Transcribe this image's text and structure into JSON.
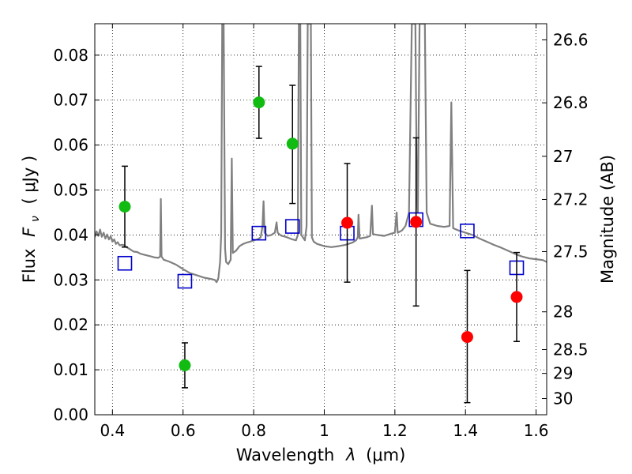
{
  "chart_data": {
    "type": "scatter",
    "xlabel_prefix": "Wavelength",
    "xlabel_symbol": "λ",
    "xlabel_unit": "(μm)",
    "ylabel_prefix": "Flux",
    "ylabel_symbol": "F",
    "ylabel_sub": "ν",
    "ylabel_unit": "( μJy )",
    "y2label": "Magnitude (AB)",
    "xlim": [
      0.35,
      1.63
    ],
    "ylim": [
      0.0,
      0.087
    ],
    "grid": true,
    "x_ticks": [
      0.4,
      0.6,
      0.8,
      1.0,
      1.2,
      1.4,
      1.6
    ],
    "x_tick_labels": [
      "0.4",
      "0.6",
      "0.8",
      "1",
      "1.2",
      "1.4",
      "1.6"
    ],
    "y_ticks": [
      0.0,
      0.01,
      0.02,
      0.03,
      0.04,
      0.05,
      0.06,
      0.07,
      0.08
    ],
    "y_tick_labels": [
      "0.00",
      "0.01",
      "0.02",
      "0.03",
      "0.04",
      "0.05",
      "0.06",
      "0.07",
      "0.08"
    ],
    "y2_ticks": [
      {
        "label": "26.6",
        "flux": 0.0834
      },
      {
        "label": "26.8",
        "flux": 0.0694
      },
      {
        "label": "27",
        "flux": 0.0575
      },
      {
        "label": "27.2",
        "flux": 0.0479
      },
      {
        "label": "27.5",
        "flux": 0.0363
      },
      {
        "label": "28",
        "flux": 0.0229
      },
      {
        "label": "28.5",
        "flux": 0.0145
      },
      {
        "label": "29",
        "flux": 0.0092
      },
      {
        "label": "30",
        "flux": 0.0036
      }
    ],
    "colors": {
      "spectrum": "#808080",
      "green": "#11bb11",
      "red": "#ff0000",
      "model": "#0000cc",
      "errorbar": "#000000"
    },
    "series": [
      {
        "kind": "line",
        "points": [
          [
            0.35,
            0.0395
          ],
          [
            0.355,
            0.0408
          ],
          [
            0.36,
            0.0398
          ],
          [
            0.365,
            0.0412
          ],
          [
            0.37,
            0.0396
          ],
          [
            0.375,
            0.0405
          ],
          [
            0.38,
            0.0392
          ],
          [
            0.385,
            0.0401
          ],
          [
            0.39,
            0.039
          ],
          [
            0.395,
            0.0397
          ],
          [
            0.4,
            0.0385
          ],
          [
            0.405,
            0.039
          ],
          [
            0.41,
            0.038
          ],
          [
            0.415,
            0.0384
          ],
          [
            0.42,
            0.0377
          ],
          [
            0.43,
            0.0378
          ],
          [
            0.44,
            0.0373
          ],
          [
            0.45,
            0.0368
          ],
          [
            0.46,
            0.0363
          ],
          [
            0.47,
            0.0362
          ],
          [
            0.48,
            0.0358
          ],
          [
            0.49,
            0.0356
          ],
          [
            0.5,
            0.0354
          ],
          [
            0.51,
            0.0352
          ],
          [
            0.52,
            0.035
          ],
          [
            0.53,
            0.0349
          ],
          [
            0.535,
            0.0352
          ],
          [
            0.537,
            0.048
          ],
          [
            0.539,
            0.0352
          ],
          [
            0.545,
            0.0345
          ],
          [
            0.56,
            0.0341
          ],
          [
            0.58,
            0.0334
          ],
          [
            0.6,
            0.0324
          ],
          [
            0.62,
            0.0315
          ],
          [
            0.64,
            0.031
          ],
          [
            0.66,
            0.0305
          ],
          [
            0.68,
            0.0302
          ],
          [
            0.69,
            0.03
          ],
          [
            0.695,
            0.0295
          ],
          [
            0.7,
            0.0304
          ],
          [
            0.705,
            0.034
          ],
          [
            0.708,
            0.04
          ],
          [
            0.711,
            0.087
          ],
          [
            0.715,
            0.087
          ],
          [
            0.719,
            0.037
          ],
          [
            0.722,
            0.034
          ],
          [
            0.728,
            0.0335
          ],
          [
            0.735,
            0.0345
          ],
          [
            0.738,
            0.057
          ],
          [
            0.741,
            0.036
          ],
          [
            0.75,
            0.0365
          ],
          [
            0.76,
            0.0375
          ],
          [
            0.77,
            0.038
          ],
          [
            0.78,
            0.0383
          ],
          [
            0.79,
            0.0385
          ],
          [
            0.8,
            0.0388
          ],
          [
            0.81,
            0.039
          ],
          [
            0.815,
            0.0392
          ],
          [
            0.82,
            0.0395
          ],
          [
            0.825,
            0.042
          ],
          [
            0.828,
            0.0475
          ],
          [
            0.831,
            0.0405
          ],
          [
            0.84,
            0.0398
          ],
          [
            0.85,
            0.04
          ],
          [
            0.86,
            0.0405
          ],
          [
            0.865,
            0.0428
          ],
          [
            0.868,
            0.0405
          ],
          [
            0.875,
            0.04
          ],
          [
            0.88,
            0.0398
          ],
          [
            0.89,
            0.0396
          ],
          [
            0.9,
            0.0393
          ],
          [
            0.91,
            0.039
          ],
          [
            0.92,
            0.0388
          ],
          [
            0.925,
            0.04
          ],
          [
            0.928,
            0.087
          ],
          [
            0.932,
            0.087
          ],
          [
            0.935,
            0.04
          ],
          [
            0.945,
            0.0388
          ],
          [
            0.95,
            0.042
          ],
          [
            0.953,
            0.087
          ],
          [
            0.962,
            0.087
          ],
          [
            0.965,
            0.0395
          ],
          [
            0.97,
            0.0385
          ],
          [
            0.98,
            0.038
          ],
          [
            1.0,
            0.0375
          ],
          [
            1.02,
            0.0373
          ],
          [
            1.04,
            0.0375
          ],
          [
            1.06,
            0.0378
          ],
          [
            1.08,
            0.0383
          ],
          [
            1.09,
            0.0388
          ],
          [
            1.095,
            0.0395
          ],
          [
            1.097,
            0.0445
          ],
          [
            1.1,
            0.0392
          ],
          [
            1.12,
            0.0395
          ],
          [
            1.13,
            0.0398
          ],
          [
            1.135,
            0.0465
          ],
          [
            1.138,
            0.0402
          ],
          [
            1.15,
            0.04
          ],
          [
            1.17,
            0.0398
          ],
          [
            1.19,
            0.0403
          ],
          [
            1.2,
            0.0405
          ],
          [
            1.205,
            0.045
          ],
          [
            1.208,
            0.0405
          ],
          [
            1.22,
            0.041
          ],
          [
            1.23,
            0.042
          ],
          [
            1.24,
            0.045
          ],
          [
            1.248,
            0.087
          ],
          [
            1.258,
            0.087
          ],
          [
            1.262,
            0.05
          ],
          [
            1.265,
            0.045
          ],
          [
            1.27,
            0.087
          ],
          [
            1.285,
            0.087
          ],
          [
            1.29,
            0.045
          ],
          [
            1.3,
            0.0425
          ],
          [
            1.32,
            0.042
          ],
          [
            1.34,
            0.0418
          ],
          [
            1.355,
            0.042
          ],
          [
            1.36,
            0.0695
          ],
          [
            1.365,
            0.0415
          ],
          [
            1.38,
            0.041
          ],
          [
            1.4,
            0.0405
          ],
          [
            1.42,
            0.04
          ],
          [
            1.44,
            0.0392
          ],
          [
            1.46,
            0.0385
          ],
          [
            1.48,
            0.0378
          ],
          [
            1.5,
            0.0372
          ],
          [
            1.52,
            0.0365
          ],
          [
            1.54,
            0.0358
          ],
          [
            1.56,
            0.0352
          ],
          [
            1.58,
            0.0348
          ],
          [
            1.6,
            0.0346
          ],
          [
            1.62,
            0.0344
          ],
          [
            1.63,
            0.034
          ]
        ]
      },
      {
        "kind": "points-green",
        "points": [
          {
            "x": 0.435,
            "y": 0.0463,
            "lo": 0.0373,
            "hi": 0.0553
          },
          {
            "x": 0.605,
            "y": 0.011,
            "lo": 0.006,
            "hi": 0.016
          },
          {
            "x": 0.815,
            "y": 0.0695,
            "lo": 0.0615,
            "hi": 0.0775
          },
          {
            "x": 0.91,
            "y": 0.0603,
            "lo": 0.047,
            "hi": 0.0733
          }
        ]
      },
      {
        "kind": "points-red",
        "points": [
          {
            "x": 1.065,
            "y": 0.0427,
            "lo": 0.0295,
            "hi": 0.0559
          },
          {
            "x": 1.26,
            "y": 0.0429,
            "lo": 0.0242,
            "hi": 0.0616
          },
          {
            "x": 1.405,
            "y": 0.0173,
            "lo": 0.0027,
            "hi": 0.0321
          },
          {
            "x": 1.545,
            "y": 0.0262,
            "lo": 0.0163,
            "hi": 0.0361
          }
        ]
      },
      {
        "kind": "squares-blue",
        "points": [
          {
            "x": 0.435,
            "y": 0.0337
          },
          {
            "x": 0.605,
            "y": 0.0297
          },
          {
            "x": 0.815,
            "y": 0.0404
          },
          {
            "x": 0.91,
            "y": 0.0419
          },
          {
            "x": 1.065,
            "y": 0.0404
          },
          {
            "x": 1.26,
            "y": 0.0434
          },
          {
            "x": 1.405,
            "y": 0.0409
          },
          {
            "x": 1.545,
            "y": 0.0327
          }
        ]
      }
    ]
  }
}
